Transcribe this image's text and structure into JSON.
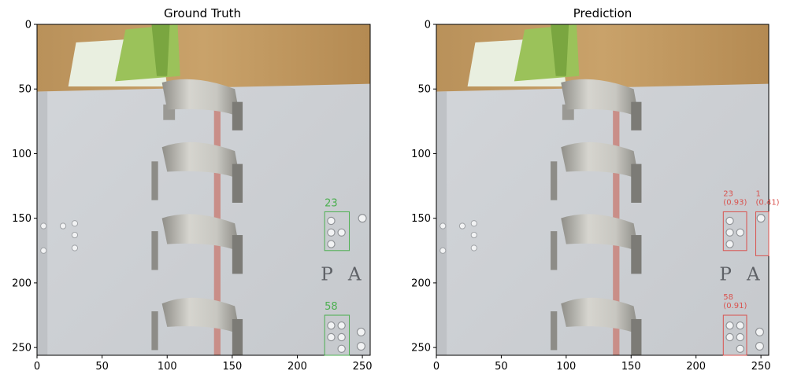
{
  "chart_data": [
    {
      "type": "image",
      "title": "Ground Truth",
      "xlim": [
        0,
        256
      ],
      "ylim": [
        256,
        0
      ],
      "xticks": [
        0,
        50,
        100,
        150,
        200,
        250
      ],
      "yticks": [
        0,
        50,
        100,
        150,
        200,
        250
      ],
      "box_color": "#4caf50",
      "boxes": [
        {
          "label": "23",
          "x0": 221,
          "y0": 145,
          "x1": 240,
          "y1": 175
        },
        {
          "label": "58",
          "x0": 221,
          "y0": 225,
          "x1": 240,
          "y1": 256
        }
      ]
    },
    {
      "type": "image",
      "title": "Prediction",
      "xlim": [
        0,
        256
      ],
      "ylim": [
        256,
        0
      ],
      "xticks": [
        0,
        50,
        100,
        150,
        200,
        250
      ],
      "yticks": [
        0,
        50,
        100,
        150,
        200,
        250
      ],
      "box_color": "#d9534f",
      "boxes": [
        {
          "label": "23",
          "score": "(0.93)",
          "x0": 221,
          "y0": 145,
          "x1": 239,
          "y1": 175
        },
        {
          "label": "1",
          "score": "(0.41)",
          "x0": 246,
          "y0": 145,
          "x1": 256,
          "y1": 179
        },
        {
          "label": "58",
          "score": "(0.91)",
          "x0": 221,
          "y0": 225,
          "x1": 239,
          "y1": 256
        }
      ]
    }
  ]
}
